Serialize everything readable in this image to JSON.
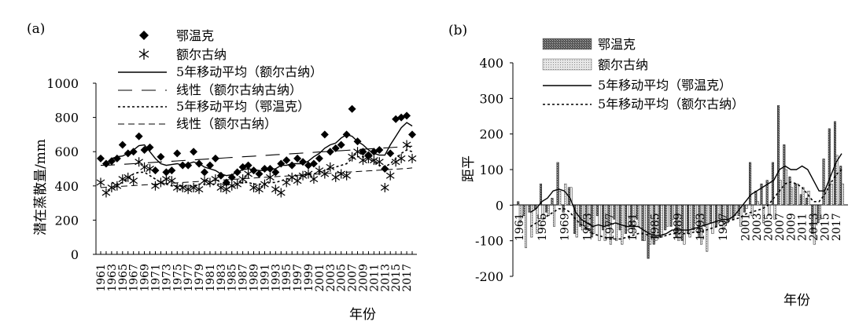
{
  "chart_data": [
    {
      "panel_label": "(a)",
      "type": "scatter",
      "xlabel": "年份",
      "ylabel": "潜在蒸散量/mm",
      "ylim": [
        0,
        1000
      ],
      "yticks": [
        "0",
        "200",
        "400",
        "600",
        "800",
        "1000"
      ],
      "x": [
        1961,
        1962,
        1963,
        1964,
        1965,
        1966,
        1967,
        1968,
        1969,
        1970,
        1971,
        1972,
        1973,
        1974,
        1975,
        1976,
        1977,
        1978,
        1979,
        1980,
        1981,
        1982,
        1983,
        1984,
        1985,
        1986,
        1987,
        1988,
        1989,
        1990,
        1991,
        1992,
        1993,
        1994,
        1995,
        1996,
        1997,
        1998,
        1999,
        2000,
        2001,
        2002,
        2003,
        2004,
        2005,
        2006,
        2007,
        2008,
        2009,
        2010,
        2011,
        2012,
        2013,
        2014,
        2015,
        2016,
        2017,
        2018
      ],
      "xtick_labels": [
        "1961",
        "1963",
        "1965",
        "1967",
        "1969",
        "1971",
        "1973",
        "1975",
        "1977",
        "1979",
        "1981",
        "1983",
        "1985",
        "1987",
        "1989",
        "1991",
        "1993",
        "1995",
        "1997",
        "1999",
        "2001",
        "2003",
        "2005",
        "2007",
        "2009",
        "2011",
        "2013",
        "2015",
        "2017"
      ],
      "grid": false,
      "legend_position": "top",
      "series": [
        {
          "name": "鄂温克",
          "marker": "diamond",
          "values": [
            560,
            530,
            545,
            560,
            640,
            590,
            600,
            690,
            610,
            625,
            490,
            570,
            480,
            490,
            590,
            520,
            520,
            600,
            530,
            480,
            520,
            560,
            460,
            420,
            450,
            480,
            510,
            520,
            490,
            470,
            500,
            500,
            480,
            530,
            550,
            520,
            560,
            540,
            520,
            530,
            560,
            700,
            600,
            620,
            640,
            700,
            850,
            660,
            600,
            580,
            600,
            610,
            500,
            590,
            790,
            800,
            810,
            700
          ]
        },
        {
          "name": "额尔古纳",
          "marker": "asterisk",
          "values": [
            420,
            360,
            390,
            400,
            440,
            450,
            430,
            540,
            510,
            500,
            400,
            420,
            440,
            430,
            390,
            390,
            380,
            390,
            380,
            430,
            420,
            440,
            390,
            380,
            400,
            410,
            440,
            470,
            390,
            380,
            410,
            450,
            380,
            360,
            420,
            450,
            430,
            460,
            470,
            440,
            490,
            470,
            510,
            450,
            470,
            460,
            570,
            600,
            550,
            560,
            550,
            540,
            390,
            460,
            540,
            560,
            640,
            560
          ]
        },
        {
          "name": "5年移动平均（额尔古纳）",
          "line": "solid",
          "values": [
            null,
            null,
            560,
            570,
            575,
            590,
            610,
            635,
            640,
            600,
            560,
            530,
            520,
            525,
            530,
            520,
            530,
            540,
            530,
            510,
            500,
            490,
            470,
            460,
            465,
            480,
            495,
            500,
            495,
            490,
            490,
            495,
            500,
            520,
            520,
            530,
            530,
            530,
            545,
            570,
            590,
            620,
            640,
            650,
            680,
            700,
            690,
            660,
            640,
            610,
            590,
            580,
            580,
            640,
            690,
            740,
            770,
            750
          ]
        },
        {
          "name": "线性（额尔古纳古纳）",
          "line": "long-dash",
          "values": [
            520,
            520,
            522,
            524,
            526,
            528,
            530,
            532,
            534,
            536,
            538,
            540,
            542,
            544,
            546,
            548,
            550,
            552,
            554,
            556,
            558,
            560,
            562,
            564,
            566,
            568,
            570,
            572,
            574,
            576,
            578,
            580,
            582,
            584,
            586,
            588,
            590,
            592,
            594,
            596,
            598,
            600,
            602,
            604,
            606,
            608,
            610,
            612,
            614,
            616,
            618,
            620,
            622,
            624,
            626,
            628,
            630,
            632
          ]
        },
        {
          "name": "5年移动平均（鄂温克）",
          "line": "dotted",
          "values": [
            null,
            null,
            420,
            410,
            420,
            440,
            470,
            480,
            480,
            460,
            440,
            420,
            410,
            400,
            400,
            400,
            400,
            400,
            410,
            410,
            410,
            410,
            410,
            410,
            400,
            410,
            420,
            420,
            410,
            410,
            410,
            420,
            420,
            430,
            440,
            450,
            460,
            460,
            470,
            470,
            480,
            490,
            500,
            510,
            520,
            530,
            560,
            570,
            570,
            560,
            540,
            520,
            510,
            530,
            560,
            590,
            610,
            600
          ]
        },
        {
          "name": "线性（额尔古纳）",
          "line": "dashed",
          "values": [
            390,
            392,
            394,
            396,
            398,
            400,
            402,
            404,
            406,
            408,
            410,
            412,
            414,
            416,
            418,
            420,
            422,
            424,
            426,
            428,
            430,
            432,
            434,
            436,
            438,
            440,
            442,
            444,
            446,
            448,
            450,
            452,
            454,
            456,
            458,
            460,
            462,
            464,
            466,
            468,
            470,
            472,
            474,
            476,
            478,
            480,
            482,
            484,
            486,
            488,
            490,
            492,
            494,
            496,
            498,
            500,
            502,
            505
          ]
        }
      ]
    },
    {
      "panel_label": "(b)",
      "type": "bar",
      "xlabel": "年份",
      "ylabel": "距平",
      "ylim": [
        -200,
        400
      ],
      "yticks": [
        "-200",
        "-100",
        "0",
        "100",
        "200",
        "300",
        "400"
      ],
      "x": [
        1961,
        1962,
        1963,
        1964,
        1965,
        1966,
        1967,
        1968,
        1969,
        1970,
        1971,
        1972,
        1973,
        1974,
        1975,
        1976,
        1977,
        1978,
        1979,
        1980,
        1981,
        1982,
        1983,
        1984,
        1985,
        1986,
        1987,
        1988,
        1989,
        1990,
        1991,
        1992,
        1993,
        1994,
        1995,
        1996,
        1997,
        1998,
        1999,
        2000,
        2001,
        2002,
        2003,
        2004,
        2005,
        2006,
        2007,
        2008,
        2009,
        2010,
        2011,
        2012,
        2013,
        2014,
        2015,
        2016,
        2017,
        2018
      ],
      "xtick_labels": [
        "1961",
        "1965",
        "1969",
        "1973",
        "1977",
        "1981",
        "1985",
        "1989",
        "1993",
        "1997",
        "2001",
        "2003",
        "2005",
        "2007",
        "2009",
        "2011",
        "2013",
        "2015",
        "2017"
      ],
      "grid": false,
      "legend_position": "top",
      "series": [
        {
          "name": "鄂温克",
          "style": "dark-stipple",
          "values": [
            10,
            -30,
            -20,
            -10,
            60,
            -20,
            20,
            120,
            -20,
            50,
            -80,
            -60,
            -70,
            -90,
            -30,
            -70,
            -60,
            -40,
            -70,
            -80,
            -60,
            -40,
            -100,
            -150,
            -110,
            -90,
            -70,
            -60,
            -90,
            -100,
            -80,
            -70,
            -90,
            -60,
            -50,
            -60,
            -40,
            -50,
            -40,
            -30,
            -20,
            120,
            40,
            60,
            70,
            120,
            280,
            170,
            80,
            60,
            30,
            20,
            -80,
            -50,
            130,
            215,
            235,
            110
          ]
        },
        {
          "name": "额尔古纳",
          "style": "light-stipple",
          "values": [
            -50,
            -120,
            -90,
            -80,
            -40,
            -30,
            -60,
            40,
            60,
            50,
            -90,
            -70,
            -60,
            -80,
            -100,
            -100,
            -110,
            -100,
            -110,
            -70,
            -80,
            -60,
            -100,
            -110,
            -100,
            -90,
            -60,
            -40,
            -100,
            -110,
            -90,
            -50,
            -110,
            -130,
            -80,
            -50,
            -70,
            -40,
            -30,
            -60,
            -10,
            -30,
            10,
            -50,
            -30,
            -40,
            70,
            100,
            50,
            60,
            50,
            40,
            -110,
            -40,
            40,
            60,
            140,
            60
          ]
        },
        {
          "name": "5年移动平均（鄂温克）",
          "line": "solid",
          "values": [
            null,
            null,
            -20,
            -10,
            10,
            20,
            40,
            45,
            40,
            20,
            -20,
            -40,
            -50,
            -60,
            -55,
            -60,
            -55,
            -50,
            -55,
            -60,
            -60,
            -60,
            -70,
            -80,
            -85,
            -85,
            -80,
            -70,
            -70,
            -70,
            -70,
            -65,
            -60,
            -55,
            -50,
            -45,
            -40,
            -40,
            -30,
            -10,
            10,
            30,
            40,
            50,
            60,
            70,
            100,
            110,
            100,
            100,
            110,
            100,
            70,
            40,
            40,
            80,
            120,
            145
          ]
        },
        {
          "name": "5年移动平均（额尔古纳）",
          "line": "dotted",
          "values": [
            null,
            null,
            -60,
            -50,
            -40,
            -30,
            -20,
            -10,
            -10,
            -20,
            -40,
            -55,
            -65,
            -80,
            -85,
            -90,
            -95,
            -95,
            -95,
            -90,
            -85,
            -80,
            -80,
            -85,
            -90,
            -90,
            -85,
            -80,
            -80,
            -80,
            -80,
            -75,
            -75,
            -70,
            -65,
            -60,
            -55,
            -45,
            -40,
            -35,
            -25,
            -20,
            -15,
            -10,
            0,
            20,
            40,
            60,
            65,
            60,
            50,
            30,
            10,
            10,
            30,
            60,
            85,
            100
          ]
        }
      ]
    }
  ]
}
